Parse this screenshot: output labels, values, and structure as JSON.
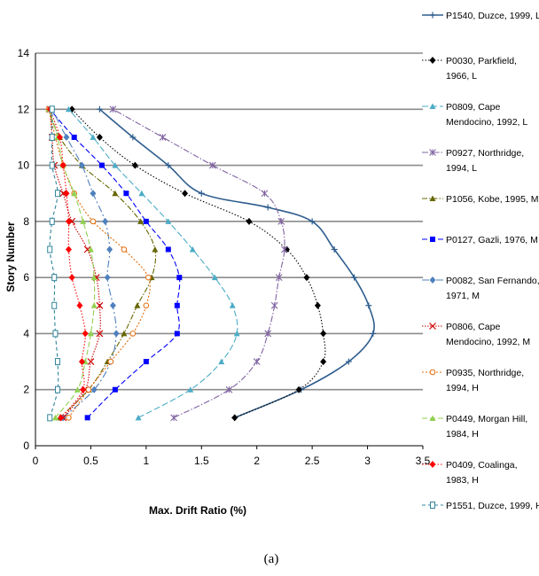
{
  "chart_data": {
    "type": "line",
    "title": "",
    "xlabel": "Max. Drift Ratio (%)",
    "ylabel": "Story Number",
    "xlim": [
      0,
      3.5
    ],
    "ylim": [
      0,
      14
    ],
    "x_ticks": [
      "0",
      "0.5",
      "1",
      "1.5",
      "2",
      "2.5",
      "3",
      "3.5"
    ],
    "y_ticks": [
      "0",
      "2",
      "4",
      "6",
      "8",
      "10",
      "12",
      "14"
    ],
    "grid": "horizontal",
    "legend_position": "right",
    "caption": "(a)",
    "series": [
      {
        "name": "P1540, Duzce, 1999, L",
        "color": "#2e5d8e",
        "dash": "",
        "marker": "plus",
        "x": [
          1.8,
          2.4,
          2.83,
          3.05,
          3.01,
          2.88,
          2.7,
          2.5,
          2.1,
          1.5,
          1.2,
          0.88,
          0.58
        ],
        "y": [
          1,
          2,
          3,
          4,
          5,
          6,
          7,
          8,
          8.5,
          9,
          10,
          11,
          12
        ]
      },
      {
        "name": "P0030, Parkfield, 1966, L",
        "color": "#000000",
        "dash": "1.5,2",
        "marker": "diamond",
        "x": [
          1.8,
          2.38,
          2.6,
          2.6,
          2.55,
          2.45,
          2.27,
          1.93,
          1.35,
          0.9,
          0.58,
          0.33
        ],
        "y": [
          1,
          2,
          3,
          4,
          5,
          6,
          7,
          8,
          9,
          10,
          11,
          12
        ]
      },
      {
        "name": "P0809, Cape Mendocino, 1992, L",
        "color": "#4bacc6",
        "dash": "7,3",
        "marker": "triangle",
        "x": [
          0.93,
          1.4,
          1.68,
          1.82,
          1.78,
          1.62,
          1.42,
          1.2,
          0.96,
          0.72,
          0.52,
          0.3
        ],
        "y": [
          1,
          2,
          3,
          4,
          5,
          6,
          7,
          8,
          9,
          10,
          11,
          12
        ]
      },
      {
        "name": "P0927, Northridge, 1994, L",
        "color": "#8064a2",
        "dash": "7,2,1.5,2",
        "marker": "star",
        "x": [
          1.25,
          1.75,
          2.0,
          2.1,
          2.16,
          2.2,
          2.25,
          2.22,
          2.07,
          1.6,
          1.15,
          0.7
        ],
        "y": [
          1,
          2,
          3,
          4,
          5,
          6,
          7,
          8,
          9,
          10,
          11,
          12
        ]
      },
      {
        "name": "P1056, Kobe, 1995, M",
        "color": "#666600",
        "dash": "6,2,1.5,2",
        "marker": "triangle",
        "x": [
          0.22,
          0.48,
          0.65,
          0.8,
          0.92,
          1.05,
          1.08,
          0.95,
          0.72,
          0.42,
          0.22,
          0.12
        ],
        "y": [
          1,
          2,
          3,
          4,
          5,
          6,
          7,
          8,
          9,
          10,
          11,
          12
        ]
      },
      {
        "name": "P0127, Gazli, 1976, M",
        "color": "#0000ff",
        "dash": "6,3",
        "marker": "square",
        "x": [
          0.47,
          0.72,
          1.0,
          1.28,
          1.28,
          1.3,
          1.2,
          1.0,
          0.82,
          0.6,
          0.35,
          0.13
        ],
        "y": [
          1,
          2,
          3,
          4,
          5,
          6,
          7,
          8,
          9,
          10,
          11,
          12
        ]
      },
      {
        "name": "P0082, San Fernando, 1971, M",
        "color": "#4f81bd",
        "dash": "8,3,2,3",
        "marker": "diamond",
        "x": [
          0.25,
          0.53,
          0.68,
          0.73,
          0.7,
          0.65,
          0.67,
          0.63,
          0.52,
          0.42,
          0.28,
          0.15
        ],
        "y": [
          1,
          2,
          3,
          4,
          5,
          6,
          7,
          8,
          9,
          10,
          11,
          12
        ]
      },
      {
        "name": "P0806, Cape Mendocino, 1992, M",
        "color": "#cc0000",
        "dash": "1.5,1.5",
        "marker": "x",
        "x": [
          0.25,
          0.45,
          0.5,
          0.58,
          0.58,
          0.55,
          0.47,
          0.33,
          0.25,
          0.17,
          0.15,
          0.13
        ],
        "y": [
          1,
          2,
          3,
          4,
          5,
          6,
          7,
          8,
          9,
          10,
          11,
          12
        ]
      },
      {
        "name": "P0935, Northridge, 1994, H",
        "color": "#e46c0a",
        "dash": "2,2",
        "marker": "circle",
        "x": [
          0.3,
          0.48,
          0.68,
          0.88,
          1.0,
          1.02,
          0.8,
          0.52,
          0.35,
          0.25,
          0.18,
          0.12
        ],
        "y": [
          1,
          2,
          3,
          4,
          5,
          6,
          7,
          8,
          9,
          10,
          11,
          12
        ]
      },
      {
        "name": "P0449, Morgan Hill, 1984, H",
        "color": "#92d050",
        "dash": "6,3",
        "marker": "triangle",
        "x": [
          0.18,
          0.38,
          0.45,
          0.5,
          0.53,
          0.53,
          0.5,
          0.43,
          0.35,
          0.25,
          0.2,
          0.12
        ],
        "y": [
          1,
          2,
          3,
          4,
          5,
          6,
          7,
          8,
          9,
          10,
          11,
          12
        ]
      },
      {
        "name": "P0409, Coalinga, 1983, H",
        "color": "#ff0000",
        "dash": "1.5,2",
        "marker": "diamond",
        "x": [
          0.23,
          0.43,
          0.42,
          0.45,
          0.4,
          0.33,
          0.3,
          0.3,
          0.28,
          0.25,
          0.22,
          0.13
        ],
        "y": [
          1,
          2,
          3,
          4,
          5,
          6,
          7,
          8,
          9,
          10,
          11,
          12
        ]
      },
      {
        "name": "P1551, Duzce, 1999, H",
        "color": "#31849b",
        "dash": "4,3",
        "marker": "square-open",
        "x": [
          0.13,
          0.2,
          0.2,
          0.18,
          0.17,
          0.17,
          0.13,
          0.15,
          0.2,
          0.15,
          0.15,
          0.15
        ],
        "y": [
          1,
          2,
          3,
          4,
          5,
          6,
          7,
          8,
          9,
          10,
          11,
          12
        ]
      }
    ]
  }
}
